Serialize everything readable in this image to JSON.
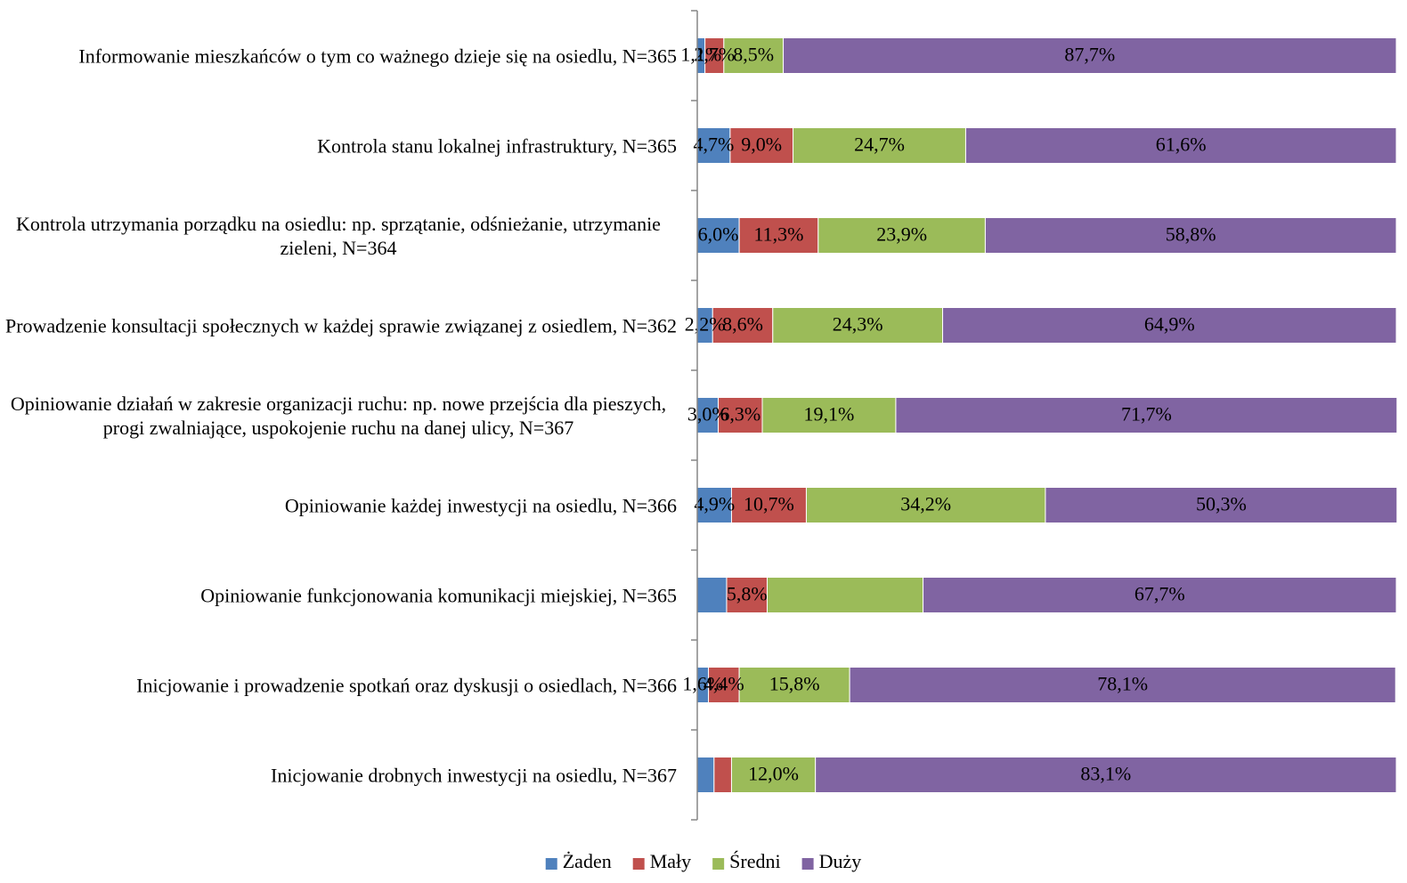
{
  "chart_data": {
    "type": "bar",
    "orientation": "horizontal",
    "stacked": true,
    "categories": [
      "Informowanie mieszkańców o tym co ważnego dzieje się na osiedlu, N=365",
      "Kontrola stanu lokalnej infrastruktury, N=365",
      "Kontrola utrzymania porządku na osiedlu: np. sprzątanie, odśnieżanie, utrzymanie zieleni, N=364",
      "Prowadzenie konsultacji społecznych w każdej sprawie związanej z osiedlem, N=362",
      "Opiniowanie działań w zakresie organizacji ruchu: np. nowe przejścia dla pieszych, progi zwalniające, uspokojenie ruchu na danej ulicy, N=367",
      "Opiniowanie każdej inwestycji na osiedlu, N=366",
      "Opiniowanie funkcjonowania komunikacji miejskiej, N=365",
      "Inicjowanie i prowadzenie spotkań oraz dyskusji o osiedlach, N=366",
      "Inicjowanie drobnych inwestycji na osiedlu, N=367"
    ],
    "series": [
      {
        "name": "Żaden",
        "color": "#4f81bd",
        "values": [
          1.1,
          4.7,
          6.0,
          2.2,
          3.0,
          4.9,
          4.2,
          1.6,
          2.4
        ],
        "value_labels": [
          "1,1%",
          "4,7%",
          "6,0%",
          "2,2%",
          "3,0%",
          "4,9%",
          null,
          "1,6%",
          null
        ]
      },
      {
        "name": "Mały",
        "color": "#c0504d",
        "values": [
          2.7,
          9.0,
          11.3,
          8.6,
          6.3,
          10.7,
          5.8,
          4.4,
          2.5
        ],
        "value_labels": [
          "2,7%",
          "9,0%",
          "11,3%",
          "8,6%",
          "6,3%",
          "10,7%",
          "5,8%",
          "4,4%",
          null
        ]
      },
      {
        "name": "Średni",
        "color": "#9bbb59",
        "values": [
          8.5,
          24.7,
          23.9,
          24.3,
          19.1,
          34.2,
          22.3,
          15.8,
          12.0
        ],
        "value_labels": [
          "8,5%",
          "24,7%",
          "23,9%",
          "24,3%",
          "19,1%",
          "34,2%",
          null,
          "15,8%",
          "12,0%"
        ]
      },
      {
        "name": "Duży",
        "color": "#8064a2",
        "values": [
          87.7,
          61.6,
          58.8,
          64.9,
          71.7,
          50.3,
          67.7,
          78.1,
          83.1
        ],
        "value_labels": [
          "87,7%",
          "61,6%",
          "58,8%",
          "64,9%",
          "71,7%",
          "50,3%",
          "67,7%",
          "78,1%",
          "83,1%"
        ]
      }
    ],
    "xlim": [
      0,
      100
    ],
    "legend": "bottom"
  }
}
